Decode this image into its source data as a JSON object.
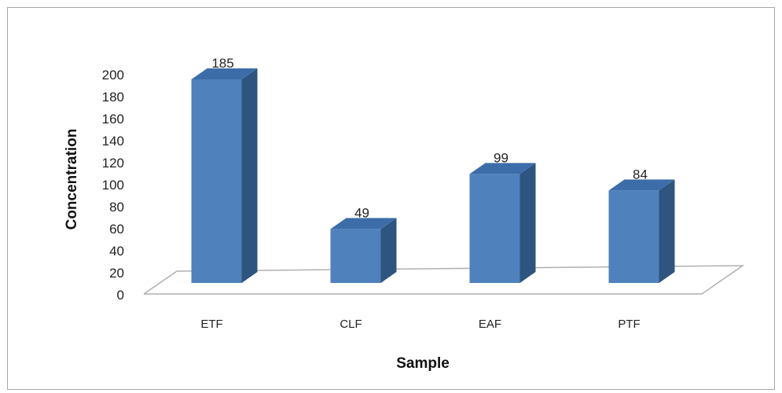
{
  "chart_data": {
    "type": "bar",
    "categories": [
      "ETF",
      "CLF",
      "EAF",
      "PTF"
    ],
    "values": [
      185,
      49,
      99,
      84
    ],
    "data_labels": [
      "185",
      "49",
      "99",
      "84"
    ],
    "title": "",
    "xlabel": "Sample",
    "ylabel": "Concentration",
    "ylim": [
      0,
      200
    ],
    "yticks": [
      0,
      20,
      40,
      60,
      80,
      100,
      120,
      140,
      160,
      180,
      200
    ],
    "grid": false,
    "legend": "none",
    "style": "3d-column",
    "colors": {
      "bar_front": "#4F81BD",
      "bar_side": "#2E5580",
      "bar_top": "#3D6DA8",
      "floor_line": "#b0b0b0"
    }
  }
}
